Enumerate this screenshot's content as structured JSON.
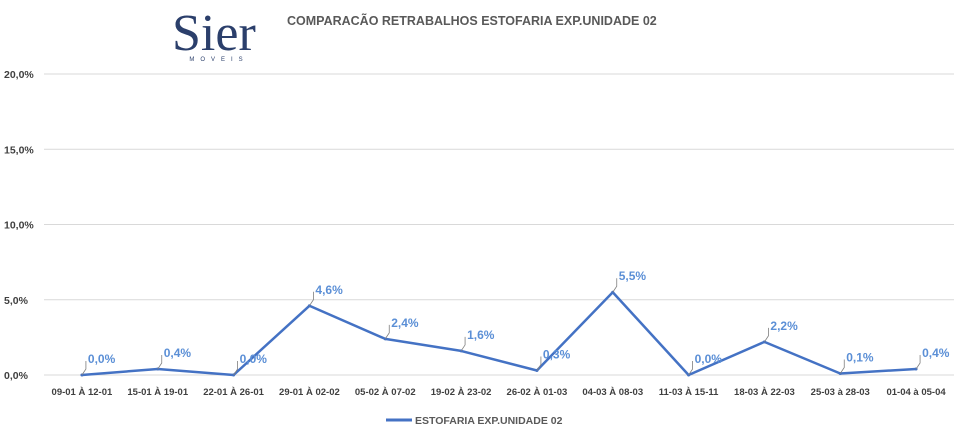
{
  "logo": {
    "name": "Sier",
    "tagline": "MOVEIS",
    "color": "#2b3f6b"
  },
  "chart_data": {
    "type": "line",
    "title": "COMPARACÃO RETRABALHOS  ESTOFARIA EXP.UNIDADE 02",
    "categories": [
      "09-01 À 12-01",
      "15-01 À 19-01",
      "22-01 À 26-01",
      "29-01 À 02-02",
      "05-02 À 07-02",
      "19-02 À 23-02",
      "26-02 À 01-03",
      "04-03 À 08-03",
      "11-03 À 15-11",
      "18-03 À 22-03",
      "25-03 à 28-03",
      "01-04 à 05-04"
    ],
    "series": [
      {
        "name": "ESTOFARIA EXP.UNIDADE 02",
        "color": "#4472c4",
        "values": [
          0.0,
          0.4,
          0.0,
          4.6,
          2.4,
          1.6,
          0.3,
          5.5,
          0.0,
          2.2,
          0.1,
          0.4
        ],
        "labels": [
          "0,0%",
          "0,4%",
          "0,0%",
          "4,6%",
          "2,4%",
          "1,6%",
          "0,3%",
          "5,5%",
          "0,0%",
          "2,2%",
          "0,1%",
          "0,4%"
        ]
      }
    ],
    "y_ticks": [
      0,
      5,
      10,
      15,
      20
    ],
    "y_tick_labels": [
      "0,0%",
      "5,0%",
      "10,0%",
      "15,0%",
      "20,0%"
    ],
    "ylim": [
      0,
      20
    ],
    "grid": true,
    "legend": "bottom",
    "label_color": "#5b8fd6",
    "axis_text_color": "#404040",
    "grid_color": "#d9d9d9"
  }
}
